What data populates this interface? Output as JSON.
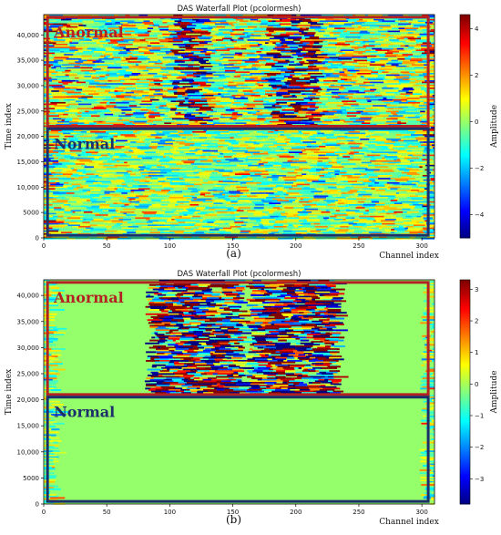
{
  "chart_data": [
    {
      "panel": "(a)",
      "type": "heatmap",
      "title": "DAS Waterfall Plot (pcolormesh)",
      "xlabel": "Channel index",
      "ylabel": "Time index",
      "colorbar_label": "Amplitude",
      "xlim": [
        0,
        310
      ],
      "ylim": [
        0,
        44000
      ],
      "xticks": [
        0,
        50,
        100,
        150,
        200,
        250,
        300
      ],
      "yticks": [
        0,
        5000,
        10000,
        15000,
        20000,
        25000,
        30000,
        35000,
        40000
      ],
      "ytick_labels": [
        "0",
        "5000",
        "10,000",
        "15,000",
        "20,000",
        "25,000",
        "30,000",
        "35,000",
        "40,000"
      ],
      "colorbar_range": [
        -5.0,
        4.6
      ],
      "colorbar_ticks": [
        -4,
        -2,
        0,
        2,
        4
      ],
      "colorbar_tick_labels": [
        "−4",
        "−2",
        "0",
        "2",
        "4"
      ],
      "colormap": "jet",
      "active_channel_bands": [
        [
          100,
          125
        ],
        [
          175,
          215
        ]
      ],
      "regions": [
        {
          "label": "Anormal",
          "color": "#b22222",
          "x_range": [
            3,
            305
          ],
          "y_range": [
            22000,
            43500
          ]
        },
        {
          "label": "Normal",
          "color": "#1c2f6b",
          "x_range": [
            3,
            305
          ],
          "y_range": [
            500,
            21500
          ]
        }
      ],
      "panel_label": "(a)"
    },
    {
      "panel": "(b)",
      "type": "heatmap",
      "title": "DAS Waterfall Plot (pcolormesh)",
      "xlabel": "Channel index",
      "ylabel": "Time index",
      "colorbar_label": "Amplitude",
      "xlim": [
        0,
        310
      ],
      "ylim": [
        0,
        43000
      ],
      "xticks": [
        0,
        50,
        100,
        150,
        200,
        250,
        300
      ],
      "yticks": [
        0,
        5000,
        10000,
        15000,
        20000,
        25000,
        30000,
        35000,
        40000
      ],
      "ytick_labels": [
        "0",
        "5000",
        "10,000",
        "15,000",
        "20,000",
        "25,000",
        "30,000",
        "35,000",
        "40,000"
      ],
      "colorbar_range": [
        -3.8,
        3.3
      ],
      "colorbar_ticks": [
        -3,
        -2,
        -1,
        0,
        1,
        2,
        3
      ],
      "colorbar_tick_labels": [
        "−3",
        "−2",
        "−1",
        "0",
        "1",
        "2",
        "3"
      ],
      "colormap": "jet",
      "active_channel_bands": [
        [
          80,
          155
        ],
        [
          160,
          230
        ]
      ],
      "regions": [
        {
          "label": "Anormal",
          "color": "#b22222",
          "x_range": [
            3,
            305
          ],
          "y_range": [
            21000,
            42500
          ]
        },
        {
          "label": "Normal",
          "color": "#1c2f6b",
          "x_range": [
            3,
            305
          ],
          "y_range": [
            500,
            20500
          ]
        }
      ],
      "panel_label": "(b)"
    }
  ]
}
